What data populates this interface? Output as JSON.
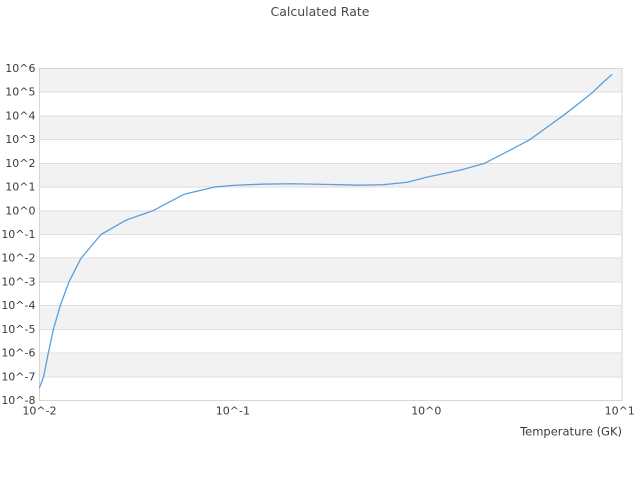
{
  "title": "Calculated Rate",
  "chart_data": {
    "type": "line",
    "title": "Calculated Rate",
    "xlabel": "Temperature (GK)",
    "ylabel": "",
    "x_scale": "log",
    "y_scale": "log",
    "xlim": [
      0.01,
      10
    ],
    "ylim": [
      1e-08,
      1000000
    ],
    "x_tick_labels": [
      "10^-2",
      "10^-1",
      "10^0",
      "10^1"
    ],
    "y_tick_labels": [
      "10^6",
      "10^5",
      "10^4",
      "10^3",
      "10^2",
      "10^1",
      "10^0",
      "10^-1",
      "10^-2",
      "10^-3",
      "10^-4",
      "10^-5",
      "10^-6",
      "10^-7",
      "10^-8"
    ],
    "grid": "horizontal decade gridlines with alternating shaded bands",
    "legend": "none",
    "series": [
      {
        "name": "Calculated Rate",
        "color": "#5b9fdb",
        "x": [
          0.01,
          0.0105,
          0.0111,
          0.0118,
          0.0128,
          0.0142,
          0.0164,
          0.0208,
          0.028,
          0.0385,
          0.056,
          0.08,
          0.1,
          0.14,
          0.2,
          0.3,
          0.45,
          0.6,
          0.8,
          1.0,
          1.5,
          2.0,
          2.76,
          3.43,
          4.2,
          5.07,
          6.1,
          7.26,
          8.2,
          9.1
        ],
        "y": [
          3.5e-08,
          1e-07,
          1e-06,
          1e-05,
          0.0001,
          0.001,
          0.01,
          0.1,
          0.4,
          1.0,
          5.0,
          10.0,
          11.8,
          13.2,
          13.8,
          13.0,
          12.0,
          12.6,
          16.0,
          26,
          52,
          100,
          390,
          1000,
          3300,
          10000,
          32000,
          100000,
          260000,
          550000
        ]
      }
    ]
  },
  "colors": {
    "background": "#ffffff",
    "band": "#f2f2f2",
    "grid": "#dedede",
    "spine": "#d6d6d6",
    "line": "#5b9fdb",
    "title_text": "#4a4a4a",
    "tick_text": "#3b3b3b"
  }
}
